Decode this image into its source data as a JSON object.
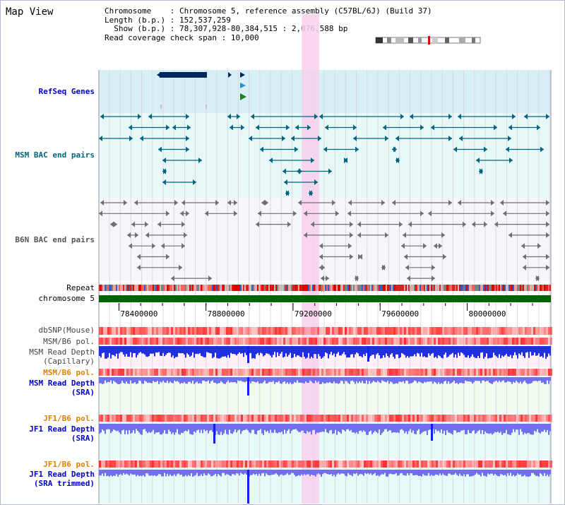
{
  "page": {
    "title": "Map View"
  },
  "info": {
    "chromosome_label": "Chromosome",
    "chromosome_value": "Chromosome 5, reference assembly (C57BL/6J) (Build 37)",
    "length_label": "Length (b.p.)",
    "length_value": "152,537,259",
    "show_label": "Show (b.p.)",
    "show_value": "78,307,928-80,384,515 : 2,076,588 bp",
    "span_label": "Read coverage check span",
    "span_value": "10,000"
  },
  "tracks": [
    {
      "id": "refseq",
      "label": "RefSeq Genes",
      "color": "#0000cc",
      "bold": true
    },
    {
      "id": "msm-bac",
      "label": "MSM BAC end pairs",
      "color": "#006680",
      "bold": true
    },
    {
      "id": "b6n-bac",
      "label": "B6N BAC end pairs",
      "color": "#555555",
      "bold": true
    },
    {
      "id": "repeat",
      "label": "Repeat",
      "color": "#000000",
      "bold": false
    },
    {
      "id": "chromosome",
      "label": "chromosome 5",
      "color": "#000000",
      "bold": false
    },
    {
      "id": "dbsnp",
      "label": "dbSNP(Mouse)",
      "color": "#444444",
      "bold": false
    },
    {
      "id": "msm-b6-pol-1",
      "label": "MSM/B6 pol.",
      "color": "#444444",
      "bold": false
    },
    {
      "id": "msm-depth-cap",
      "label": "MSM Read Depth",
      "sub": "(Capillary)",
      "color": "#444444",
      "bold": false
    },
    {
      "id": "msm-b6-pol-2",
      "label": "MSM/B6 pol.",
      "color": "#e08000",
      "bold": true
    },
    {
      "id": "msm-depth-sra",
      "label": "MSM Read Depth",
      "sub": "(SRA)",
      "color": "#0000cc",
      "bold": true
    },
    {
      "id": "jf1-b6-pol-1",
      "label": "JF1/B6 pol.",
      "color": "#e08000",
      "bold": true
    },
    {
      "id": "jf1-depth-sra",
      "label": "JF1 Read Depth",
      "sub": "(SRA)",
      "color": "#0000cc",
      "bold": true
    },
    {
      "id": "jf1-b6-pol-2",
      "label": "JF1/B6 pol.",
      "color": "#e08000",
      "bold": true
    },
    {
      "id": "jf1-depth-trim",
      "label": "JF1 Read Depth",
      "sub": "(SRA trimmed)",
      "color": "#0000cc",
      "bold": true
    }
  ],
  "axis": {
    "start": 78307928,
    "end": 80384515,
    "ticks": [
      {
        "value": 78400000,
        "label": "78400000"
      },
      {
        "value": 78800000,
        "label": "78800000"
      },
      {
        "value": 79200000,
        "label": "79200000"
      },
      {
        "value": 79600000,
        "label": "79600000"
      },
      {
        "value": 80000000,
        "label": "80000000"
      }
    ]
  },
  "highlight": {
    "start": 79240000,
    "end": 79320000,
    "color": "#f8d0ec"
  },
  "colors": {
    "refseq_bg": "#d8eff8",
    "msm_bg": "#e8f8f8",
    "b6n_bg": "#f6f6fa",
    "gene": "#002860",
    "msm_pair": "#006680",
    "b6n_pair": "#707070",
    "chromosome_band": "#006400",
    "polymorphism": "#ff4444",
    "depth_dark": "#2030e0",
    "depth_light": "#7070ee"
  }
}
